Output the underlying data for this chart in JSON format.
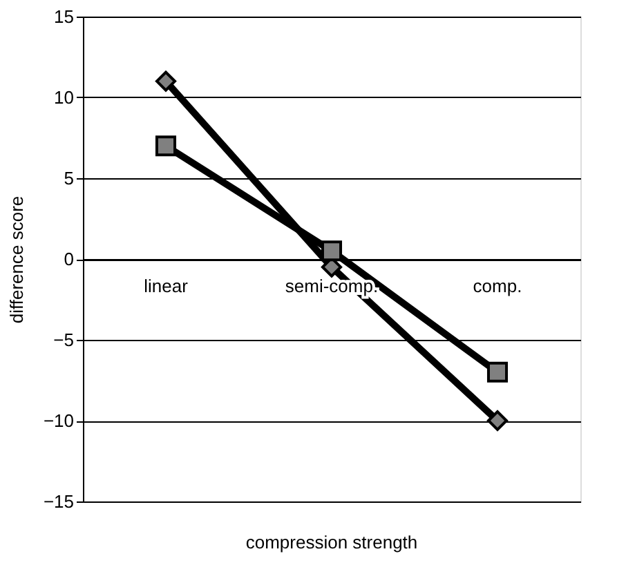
{
  "chart_data": {
    "type": "line",
    "xlabel": "compression strength",
    "ylabel": "difference  score",
    "categories": [
      "linear",
      "semi-comp.",
      "comp."
    ],
    "series": [
      {
        "color": "#000000",
        "marker": "diamond",
        "values": [
          11,
          -0.5,
          -10
        ]
      },
      {
        "color": "#000000",
        "marker": "square",
        "values": [
          7,
          0.5,
          -7
        ]
      }
    ],
    "ylim": [
      -15,
      15
    ],
    "yticks": [
      -15,
      -10,
      -5,
      0,
      5,
      10,
      15
    ],
    "grid": "y"
  }
}
